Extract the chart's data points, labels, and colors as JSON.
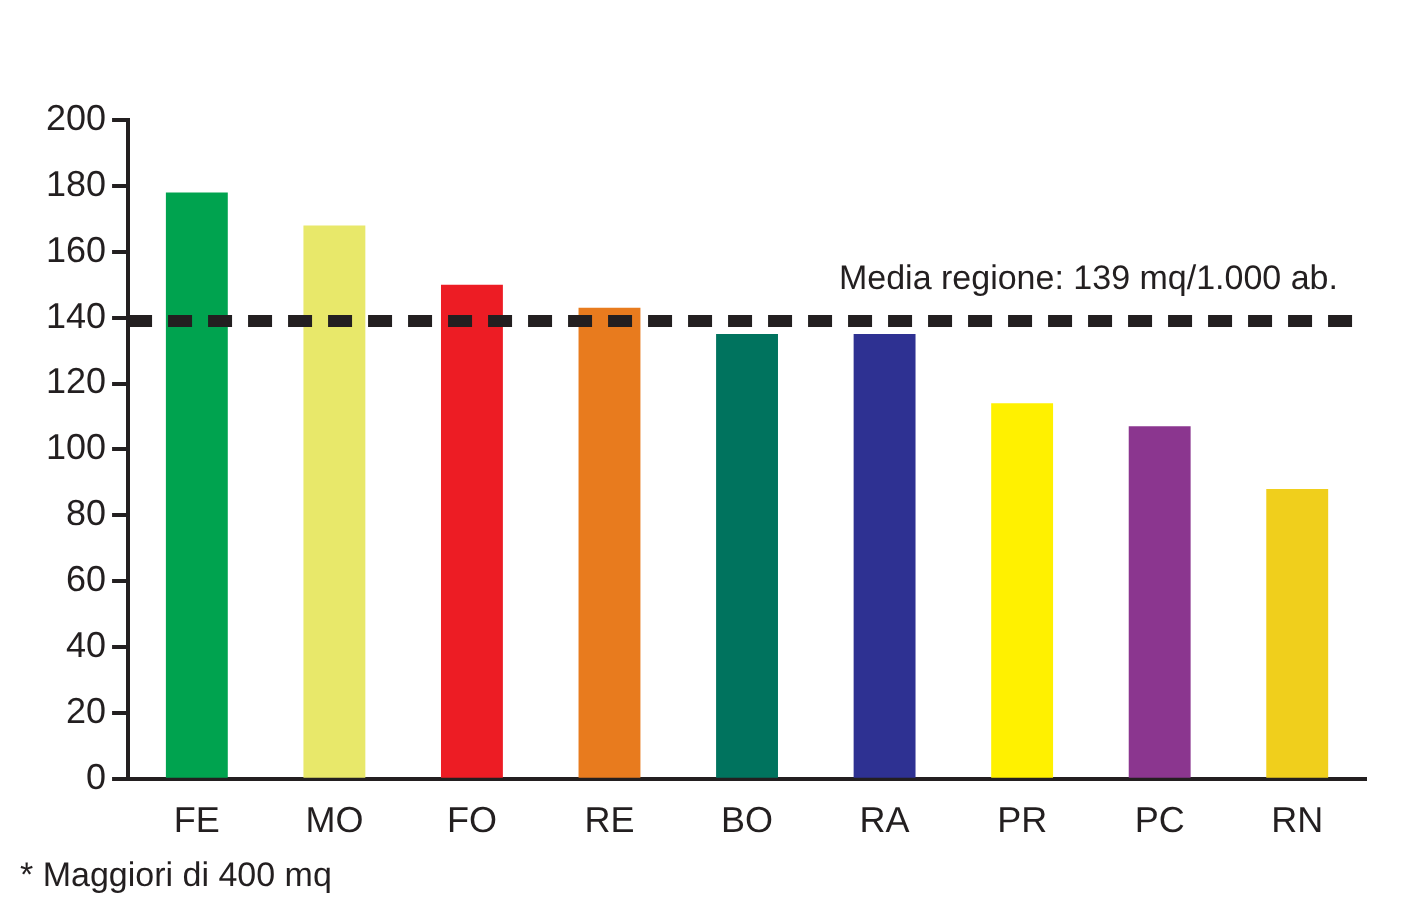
{
  "chart_data": {
    "type": "bar",
    "categories": [
      "FE",
      "MO",
      "FO",
      "RE",
      "BO",
      "RA",
      "PR",
      "PC",
      "RN"
    ],
    "values": [
      178,
      168,
      150,
      143,
      135,
      135,
      114,
      107,
      88
    ],
    "colors": [
      "#00a34f",
      "#e8e86a",
      "#ed1c24",
      "#e87b1e",
      "#00735e",
      "#2e3192",
      "#fff100",
      "#8b368f",
      "#f0cf1c"
    ],
    "ylim": [
      0,
      200
    ],
    "yticks": [
      0,
      20,
      40,
      60,
      80,
      100,
      120,
      140,
      160,
      180,
      200
    ],
    "grid": false,
    "legend": false,
    "ref_lines": [
      {
        "axis": "y",
        "value": 139,
        "label": "Media regione: 139 mq/1.000 ab.",
        "color": "#231f20",
        "line_style": "dashed"
      }
    ],
    "annotations": [
      "* Maggiori di 400 mq"
    ]
  }
}
